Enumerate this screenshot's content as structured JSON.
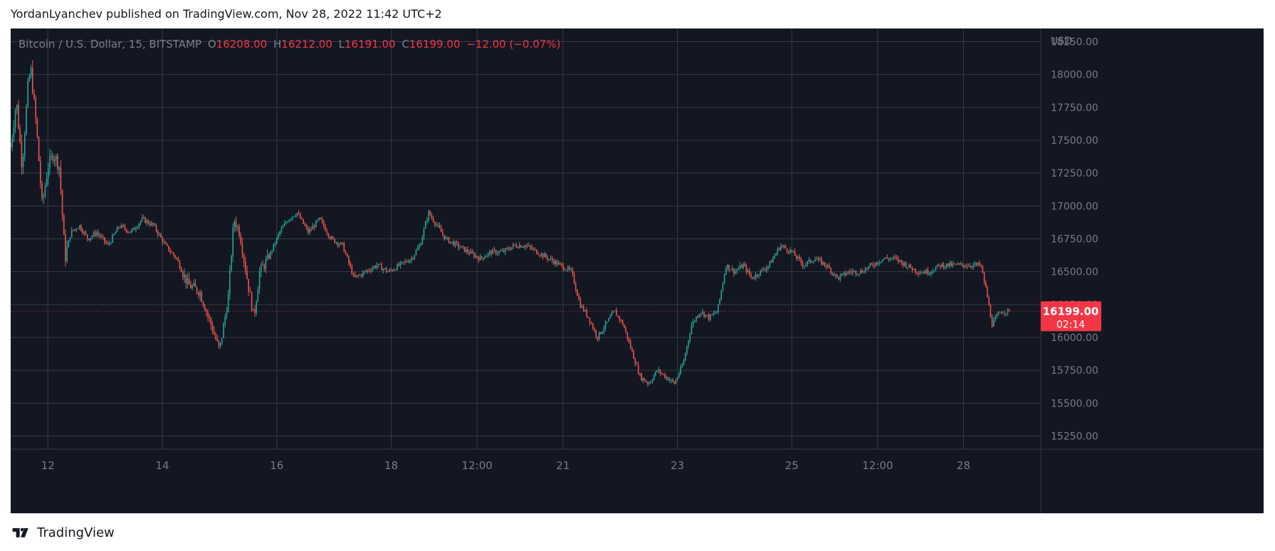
{
  "header": {
    "text": "YordanLyanchev published on TradingView.com, Nov 28, 2022 11:42 UTC+2"
  },
  "legend": {
    "symbol": "Bitcoin / U.S. Dollar, 15, BITSTAMP",
    "o_label": "O",
    "o": "16208.00",
    "h_label": "H",
    "h": "16212.00",
    "l_label": "L",
    "l": "16191.00",
    "c_label": "C",
    "c": "16199.00",
    "change": "−12.00 (−0.07%)"
  },
  "price_tag": {
    "price": "16199.00",
    "countdown": "02:14"
  },
  "footer": {
    "brand": "TradingView"
  },
  "colors": {
    "background": "#131722",
    "grid": "#363a45",
    "up": "#26a69a",
    "down": "#ef5350",
    "axis_text": "#787b86",
    "tag": "#f23645"
  },
  "chart_data": {
    "type": "candlestick",
    "symbol": "Bitcoin / U.S. Dollar",
    "interval": "15",
    "exchange": "BITSTAMP",
    "currency_label": "USD",
    "ylim": [
      15150,
      18350
    ],
    "y_ticks": [
      "18250.00",
      "18000.00",
      "17750.00",
      "17500.00",
      "17250.00",
      "17000.00",
      "16750.00",
      "16500.00",
      "16250.00",
      "16000.00",
      "15750.00",
      "15500.00",
      "15250.00"
    ],
    "y_tick_values": [
      18250,
      18000,
      17750,
      17500,
      17250,
      17000,
      16750,
      16500,
      16250,
      16000,
      15750,
      15500,
      15250
    ],
    "xlim": [
      11.0,
      29.0
    ],
    "x_ticks": [
      {
        "label": "12",
        "pos": 11.65
      },
      {
        "label": "14",
        "pos": 13.65
      },
      {
        "label": "16",
        "pos": 15.65
      },
      {
        "label": "18",
        "pos": 17.65
      },
      {
        "label": "12:00",
        "pos": 19.15
      },
      {
        "label": "21",
        "pos": 20.65
      },
      {
        "label": "23",
        "pos": 22.65
      },
      {
        "label": "25",
        "pos": 24.65
      },
      {
        "label": "12:00",
        "pos": 26.15
      },
      {
        "label": "28",
        "pos": 27.65
      }
    ],
    "last_price": 16199,
    "series_close": [
      [
        11.0,
        17450
      ],
      [
        11.1,
        17800
      ],
      [
        11.2,
        17300
      ],
      [
        11.3,
        17900
      ],
      [
        11.35,
        18050
      ],
      [
        11.45,
        17600
      ],
      [
        11.55,
        17000
      ],
      [
        11.65,
        17300
      ],
      [
        11.75,
        17400
      ],
      [
        11.85,
        17300
      ],
      [
        11.95,
        16600
      ],
      [
        12.05,
        16800
      ],
      [
        12.2,
        16850
      ],
      [
        12.35,
        16750
      ],
      [
        12.5,
        16800
      ],
      [
        12.7,
        16700
      ],
      [
        12.9,
        16850
      ],
      [
        13.1,
        16800
      ],
      [
        13.3,
        16900
      ],
      [
        13.5,
        16850
      ],
      [
        13.7,
        16700
      ],
      [
        13.9,
        16600
      ],
      [
        14.1,
        16400
      ],
      [
        14.3,
        16350
      ],
      [
        14.5,
        16100
      ],
      [
        14.65,
        15900
      ],
      [
        14.8,
        16300
      ],
      [
        14.9,
        16900
      ],
      [
        15.0,
        16800
      ],
      [
        15.15,
        16400
      ],
      [
        15.25,
        16150
      ],
      [
        15.35,
        16500
      ],
      [
        15.5,
        16600
      ],
      [
        15.7,
        16800
      ],
      [
        15.85,
        16900
      ],
      [
        16.0,
        16950
      ],
      [
        16.2,
        16800
      ],
      [
        16.4,
        16900
      ],
      [
        16.6,
        16750
      ],
      [
        16.8,
        16700
      ],
      [
        17.0,
        16450
      ],
      [
        17.2,
        16500
      ],
      [
        17.4,
        16550
      ],
      [
        17.6,
        16500
      ],
      [
        17.8,
        16550
      ],
      [
        18.0,
        16600
      ],
      [
        18.15,
        16700
      ],
      [
        18.3,
        16950
      ],
      [
        18.45,
        16850
      ],
      [
        18.6,
        16750
      ],
      [
        18.8,
        16700
      ],
      [
        19.0,
        16650
      ],
      [
        19.2,
        16600
      ],
      [
        19.4,
        16650
      ],
      [
        19.6,
        16650
      ],
      [
        19.8,
        16700
      ],
      [
        20.0,
        16700
      ],
      [
        20.2,
        16650
      ],
      [
        20.4,
        16600
      ],
      [
        20.6,
        16550
      ],
      [
        20.8,
        16500
      ],
      [
        20.95,
        16250
      ],
      [
        21.1,
        16150
      ],
      [
        21.25,
        16000
      ],
      [
        21.4,
        16100
      ],
      [
        21.55,
        16200
      ],
      [
        21.7,
        16100
      ],
      [
        21.85,
        15900
      ],
      [
        22.0,
        15700
      ],
      [
        22.15,
        15650
      ],
      [
        22.3,
        15750
      ],
      [
        22.45,
        15700
      ],
      [
        22.6,
        15650
      ],
      [
        22.75,
        15800
      ],
      [
        22.9,
        16100
      ],
      [
        23.05,
        16200
      ],
      [
        23.2,
        16150
      ],
      [
        23.35,
        16200
      ],
      [
        23.5,
        16550
      ],
      [
        23.65,
        16500
      ],
      [
        23.8,
        16550
      ],
      [
        23.95,
        16450
      ],
      [
        24.1,
        16500
      ],
      [
        24.25,
        16550
      ],
      [
        24.45,
        16700
      ],
      [
        24.65,
        16650
      ],
      [
        24.85,
        16550
      ],
      [
        25.05,
        16600
      ],
      [
        25.25,
        16550
      ],
      [
        25.45,
        16450
      ],
      [
        25.65,
        16500
      ],
      [
        25.85,
        16500
      ],
      [
        26.05,
        16550
      ],
      [
        26.25,
        16600
      ],
      [
        26.45,
        16600
      ],
      [
        26.65,
        16550
      ],
      [
        26.85,
        16500
      ],
      [
        27.05,
        16500
      ],
      [
        27.25,
        16550
      ],
      [
        27.45,
        16550
      ],
      [
        27.65,
        16550
      ],
      [
        27.85,
        16550
      ],
      [
        27.95,
        16550
      ],
      [
        28.05,
        16350
      ],
      [
        28.15,
        16100
      ],
      [
        28.3,
        16200
      ],
      [
        28.45,
        16199
      ]
    ]
  }
}
